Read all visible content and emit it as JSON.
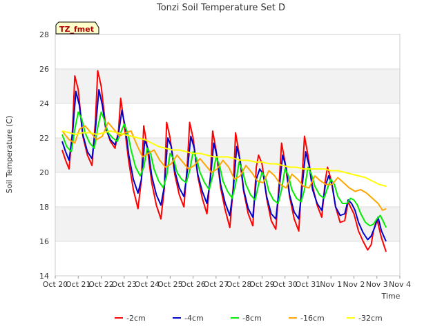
{
  "chart_data": {
    "type": "line",
    "title": "Tonzi Soil Temperature Set D",
    "xlabel": "Time",
    "ylabel": "Soil Temperature (C)",
    "badge": "TZ_fmet",
    "ylim": [
      14,
      28
    ],
    "xlim": [
      0,
      15
    ],
    "yticks": [
      14,
      16,
      18,
      20,
      22,
      24,
      26,
      28
    ],
    "xticks": [
      "Oct 20",
      "Oct 21",
      "Oct 22",
      "Oct 23",
      "Oct 24",
      "Oct 25",
      "Oct 26",
      "Oct 27",
      "Oct 28",
      "Oct 29",
      "Oct 30",
      "Oct 31",
      "Nov 1",
      "Nov 2",
      "Nov 3",
      "Nov 4"
    ],
    "grid": true,
    "legend_position": "bottom",
    "series": [
      {
        "name": "-2cm",
        "color": "#ff0000",
        "x": [
          0.3,
          0.45,
          0.6,
          0.75,
          0.85,
          1.0,
          1.2,
          1.4,
          1.6,
          1.75,
          1.85,
          2.0,
          2.2,
          2.4,
          2.6,
          2.75,
          2.85,
          3.0,
          3.2,
          3.4,
          3.6,
          3.75,
          3.85,
          4.0,
          4.2,
          4.4,
          4.6,
          4.75,
          4.85,
          5.0,
          5.2,
          5.4,
          5.6,
          5.75,
          5.85,
          6.0,
          6.2,
          6.4,
          6.6,
          6.75,
          6.85,
          7.0,
          7.2,
          7.4,
          7.6,
          7.75,
          7.85,
          8.0,
          8.2,
          8.4,
          8.6,
          8.75,
          8.85,
          9.0,
          9.2,
          9.4,
          9.6,
          9.75,
          9.85,
          10.0,
          10.2,
          10.4,
          10.6,
          10.75,
          10.85,
          11.0,
          11.2,
          11.4,
          11.6,
          11.75,
          11.85,
          12.0,
          12.2,
          12.4,
          12.6,
          12.75,
          12.85,
          13.0,
          13.2,
          13.4,
          13.6,
          13.75,
          13.85,
          14.0,
          14.2,
          14.4
        ],
        "y": [
          21.3,
          20.7,
          20.2,
          22.5,
          25.6,
          24.8,
          22.1,
          21.0,
          20.4,
          23.0,
          25.9,
          25.0,
          22.6,
          21.8,
          21.4,
          22.4,
          24.3,
          22.8,
          20.6,
          19.0,
          17.9,
          19.6,
          22.7,
          21.5,
          19.4,
          18.1,
          17.3,
          19.1,
          22.9,
          22.0,
          19.9,
          18.7,
          18.0,
          20.5,
          22.9,
          22.0,
          19.8,
          18.5,
          17.6,
          19.8,
          22.4,
          21.3,
          19.1,
          17.8,
          16.8,
          19.2,
          22.3,
          21.1,
          18.9,
          17.6,
          16.9,
          20.3,
          21.0,
          20.5,
          18.5,
          17.2,
          16.7,
          19.5,
          21.7,
          20.6,
          18.6,
          17.3,
          16.6,
          19.8,
          22.1,
          21.0,
          19.2,
          18.1,
          17.4,
          19.5,
          20.3,
          19.6,
          18.0,
          17.1,
          17.2,
          18.3,
          18.0,
          17.6,
          16.6,
          16.0,
          15.5,
          15.8,
          16.6,
          17.3,
          16.2,
          15.4
        ]
      },
      {
        "name": "-4cm",
        "color": "#0000cc",
        "x": [
          0.3,
          0.45,
          0.6,
          0.75,
          0.9,
          1.05,
          1.2,
          1.4,
          1.6,
          1.75,
          1.9,
          2.05,
          2.2,
          2.4,
          2.6,
          2.75,
          2.9,
          3.05,
          3.2,
          3.4,
          3.6,
          3.75,
          3.9,
          4.05,
          4.2,
          4.4,
          4.6,
          4.75,
          4.9,
          5.05,
          5.2,
          5.4,
          5.6,
          5.75,
          5.9,
          6.05,
          6.2,
          6.4,
          6.6,
          6.75,
          6.9,
          7.05,
          7.2,
          7.4,
          7.6,
          7.75,
          7.9,
          8.05,
          8.2,
          8.4,
          8.6,
          8.75,
          8.9,
          9.05,
          9.2,
          9.4,
          9.6,
          9.75,
          9.9,
          10.05,
          10.2,
          10.4,
          10.6,
          10.75,
          10.9,
          11.05,
          11.2,
          11.4,
          11.6,
          11.75,
          11.9,
          12.05,
          12.2,
          12.4,
          12.6,
          12.75,
          12.9,
          13.05,
          13.2,
          13.4,
          13.6,
          13.75,
          13.9,
          14.05,
          14.2,
          14.4
        ],
        "y": [
          21.8,
          21.2,
          20.7,
          22.2,
          24.7,
          23.9,
          22.2,
          21.2,
          20.8,
          22.5,
          24.8,
          23.9,
          22.5,
          21.9,
          21.6,
          22.2,
          23.6,
          22.6,
          21.0,
          19.6,
          18.8,
          19.6,
          21.9,
          21.3,
          19.8,
          18.7,
          18.1,
          19.2,
          22.0,
          21.5,
          20.1,
          19.1,
          18.6,
          20.1,
          22.1,
          21.4,
          19.9,
          18.9,
          18.2,
          19.6,
          21.7,
          20.9,
          19.3,
          18.2,
          17.5,
          19.0,
          21.5,
          20.7,
          19.0,
          17.9,
          17.4,
          19.6,
          20.2,
          19.9,
          18.6,
          17.6,
          17.3,
          19.1,
          21.0,
          20.3,
          18.7,
          17.7,
          17.3,
          19.2,
          21.2,
          20.4,
          19.0,
          18.2,
          17.8,
          19.2,
          19.8,
          19.3,
          18.0,
          17.5,
          17.6,
          18.4,
          18.2,
          17.8,
          17.1,
          16.5,
          16.1,
          16.3,
          16.8,
          17.4,
          16.6,
          16.0
        ]
      },
      {
        "name": "-8cm",
        "color": "#00ee00",
        "x": [
          0.3,
          0.5,
          0.7,
          0.85,
          1.0,
          1.15,
          1.3,
          1.5,
          1.7,
          1.85,
          2.0,
          2.15,
          2.3,
          2.5,
          2.7,
          2.85,
          3.0,
          3.15,
          3.3,
          3.5,
          3.7,
          3.85,
          4.0,
          4.15,
          4.3,
          4.5,
          4.7,
          4.85,
          5.0,
          5.15,
          5.3,
          5.5,
          5.7,
          5.85,
          6.0,
          6.15,
          6.3,
          6.5,
          6.7,
          6.85,
          7.0,
          7.15,
          7.3,
          7.5,
          7.7,
          7.85,
          8.0,
          8.15,
          8.3,
          8.5,
          8.7,
          8.85,
          9.0,
          9.15,
          9.3,
          9.5,
          9.7,
          9.85,
          10.0,
          10.15,
          10.3,
          10.5,
          10.7,
          10.85,
          11.0,
          11.15,
          11.3,
          11.5,
          11.7,
          11.85,
          12.0,
          12.15,
          12.3,
          12.5,
          12.7,
          12.85,
          13.0,
          13.15,
          13.3,
          13.5,
          13.7,
          13.85,
          14.0,
          14.15,
          14.3,
          14.4
        ],
        "y": [
          22.2,
          21.5,
          21.2,
          22.5,
          23.5,
          23.1,
          22.3,
          21.7,
          21.4,
          22.6,
          23.5,
          23.0,
          22.3,
          22.0,
          21.8,
          22.3,
          22.8,
          22.3,
          21.3,
          20.3,
          19.8,
          20.3,
          21.4,
          21.1,
          20.2,
          19.5,
          19.1,
          19.8,
          21.1,
          20.8,
          20.0,
          19.6,
          19.4,
          20.1,
          21.2,
          20.8,
          20.0,
          19.4,
          19.0,
          19.8,
          20.9,
          20.4,
          19.5,
          18.9,
          18.5,
          19.3,
          20.6,
          20.1,
          19.3,
          18.7,
          18.4,
          19.3,
          20.0,
          19.7,
          18.9,
          18.4,
          18.2,
          19.0,
          20.2,
          19.8,
          19.0,
          18.5,
          18.3,
          19.0,
          20.3,
          19.9,
          19.2,
          18.7,
          18.5,
          19.1,
          19.6,
          19.3,
          18.6,
          18.2,
          18.2,
          18.5,
          18.4,
          18.1,
          17.6,
          17.1,
          16.9,
          17.0,
          17.3,
          17.5,
          17.1,
          16.8
        ]
      },
      {
        "name": "-16cm",
        "color": "#ffa500",
        "x": [
          0.3,
          0.6,
          0.85,
          1.05,
          1.3,
          1.55,
          1.8,
          2.05,
          2.3,
          2.55,
          2.8,
          3.05,
          3.3,
          3.55,
          3.8,
          4.05,
          4.3,
          4.55,
          4.8,
          5.05,
          5.3,
          5.55,
          5.8,
          6.05,
          6.3,
          6.55,
          6.8,
          7.05,
          7.3,
          7.55,
          7.8,
          8.05,
          8.3,
          8.55,
          8.8,
          9.05,
          9.3,
          9.55,
          9.8,
          10.05,
          10.3,
          10.55,
          10.8,
          11.05,
          11.3,
          11.55,
          11.8,
          12.05,
          12.3,
          12.55,
          12.8,
          13.05,
          13.3,
          13.55,
          13.8,
          14.05,
          14.25,
          14.4
        ],
        "y": [
          22.4,
          21.9,
          21.7,
          22.5,
          22.7,
          22.3,
          21.9,
          22.1,
          22.9,
          22.5,
          22.1,
          22.3,
          22.4,
          21.6,
          20.9,
          21.1,
          21.3,
          20.7,
          20.3,
          20.5,
          21.0,
          20.6,
          20.2,
          20.4,
          20.8,
          20.4,
          20.0,
          20.2,
          20.7,
          20.3,
          19.6,
          19.8,
          20.4,
          20.0,
          19.5,
          19.4,
          20.1,
          19.8,
          19.3,
          19.1,
          19.9,
          19.6,
          19.2,
          19.1,
          19.8,
          19.5,
          19.3,
          19.3,
          19.7,
          19.4,
          19.1,
          18.9,
          19.0,
          18.8,
          18.5,
          18.2,
          17.8,
          17.9
        ]
      },
      {
        "name": "-32cm",
        "color": "#ffff00",
        "x": [
          0.3,
          0.6,
          0.9,
          1.2,
          1.5,
          1.8,
          2.1,
          2.4,
          2.7,
          3.0,
          3.3,
          3.6,
          3.9,
          4.2,
          4.5,
          4.8,
          5.1,
          5.4,
          5.7,
          6.0,
          6.3,
          6.6,
          6.9,
          7.2,
          7.5,
          7.8,
          8.1,
          8.4,
          8.7,
          9.0,
          9.3,
          9.6,
          9.9,
          10.2,
          10.5,
          10.8,
          11.1,
          11.4,
          11.7,
          12.0,
          12.3,
          12.6,
          12.9,
          13.2,
          13.5,
          13.8,
          14.1,
          14.4
        ],
        "y": [
          22.4,
          22.3,
          22.2,
          22.3,
          22.3,
          22.2,
          22.3,
          22.4,
          22.3,
          22.2,
          22.1,
          22.0,
          21.9,
          21.7,
          21.5,
          21.4,
          21.3,
          21.3,
          21.2,
          21.1,
          21.1,
          21.0,
          20.9,
          20.9,
          20.9,
          20.8,
          20.7,
          20.7,
          20.6,
          20.6,
          20.5,
          20.5,
          20.4,
          20.3,
          20.3,
          20.2,
          20.2,
          20.2,
          20.2,
          20.1,
          20.1,
          20.0,
          19.9,
          19.8,
          19.7,
          19.5,
          19.3,
          19.2
        ]
      }
    ]
  }
}
